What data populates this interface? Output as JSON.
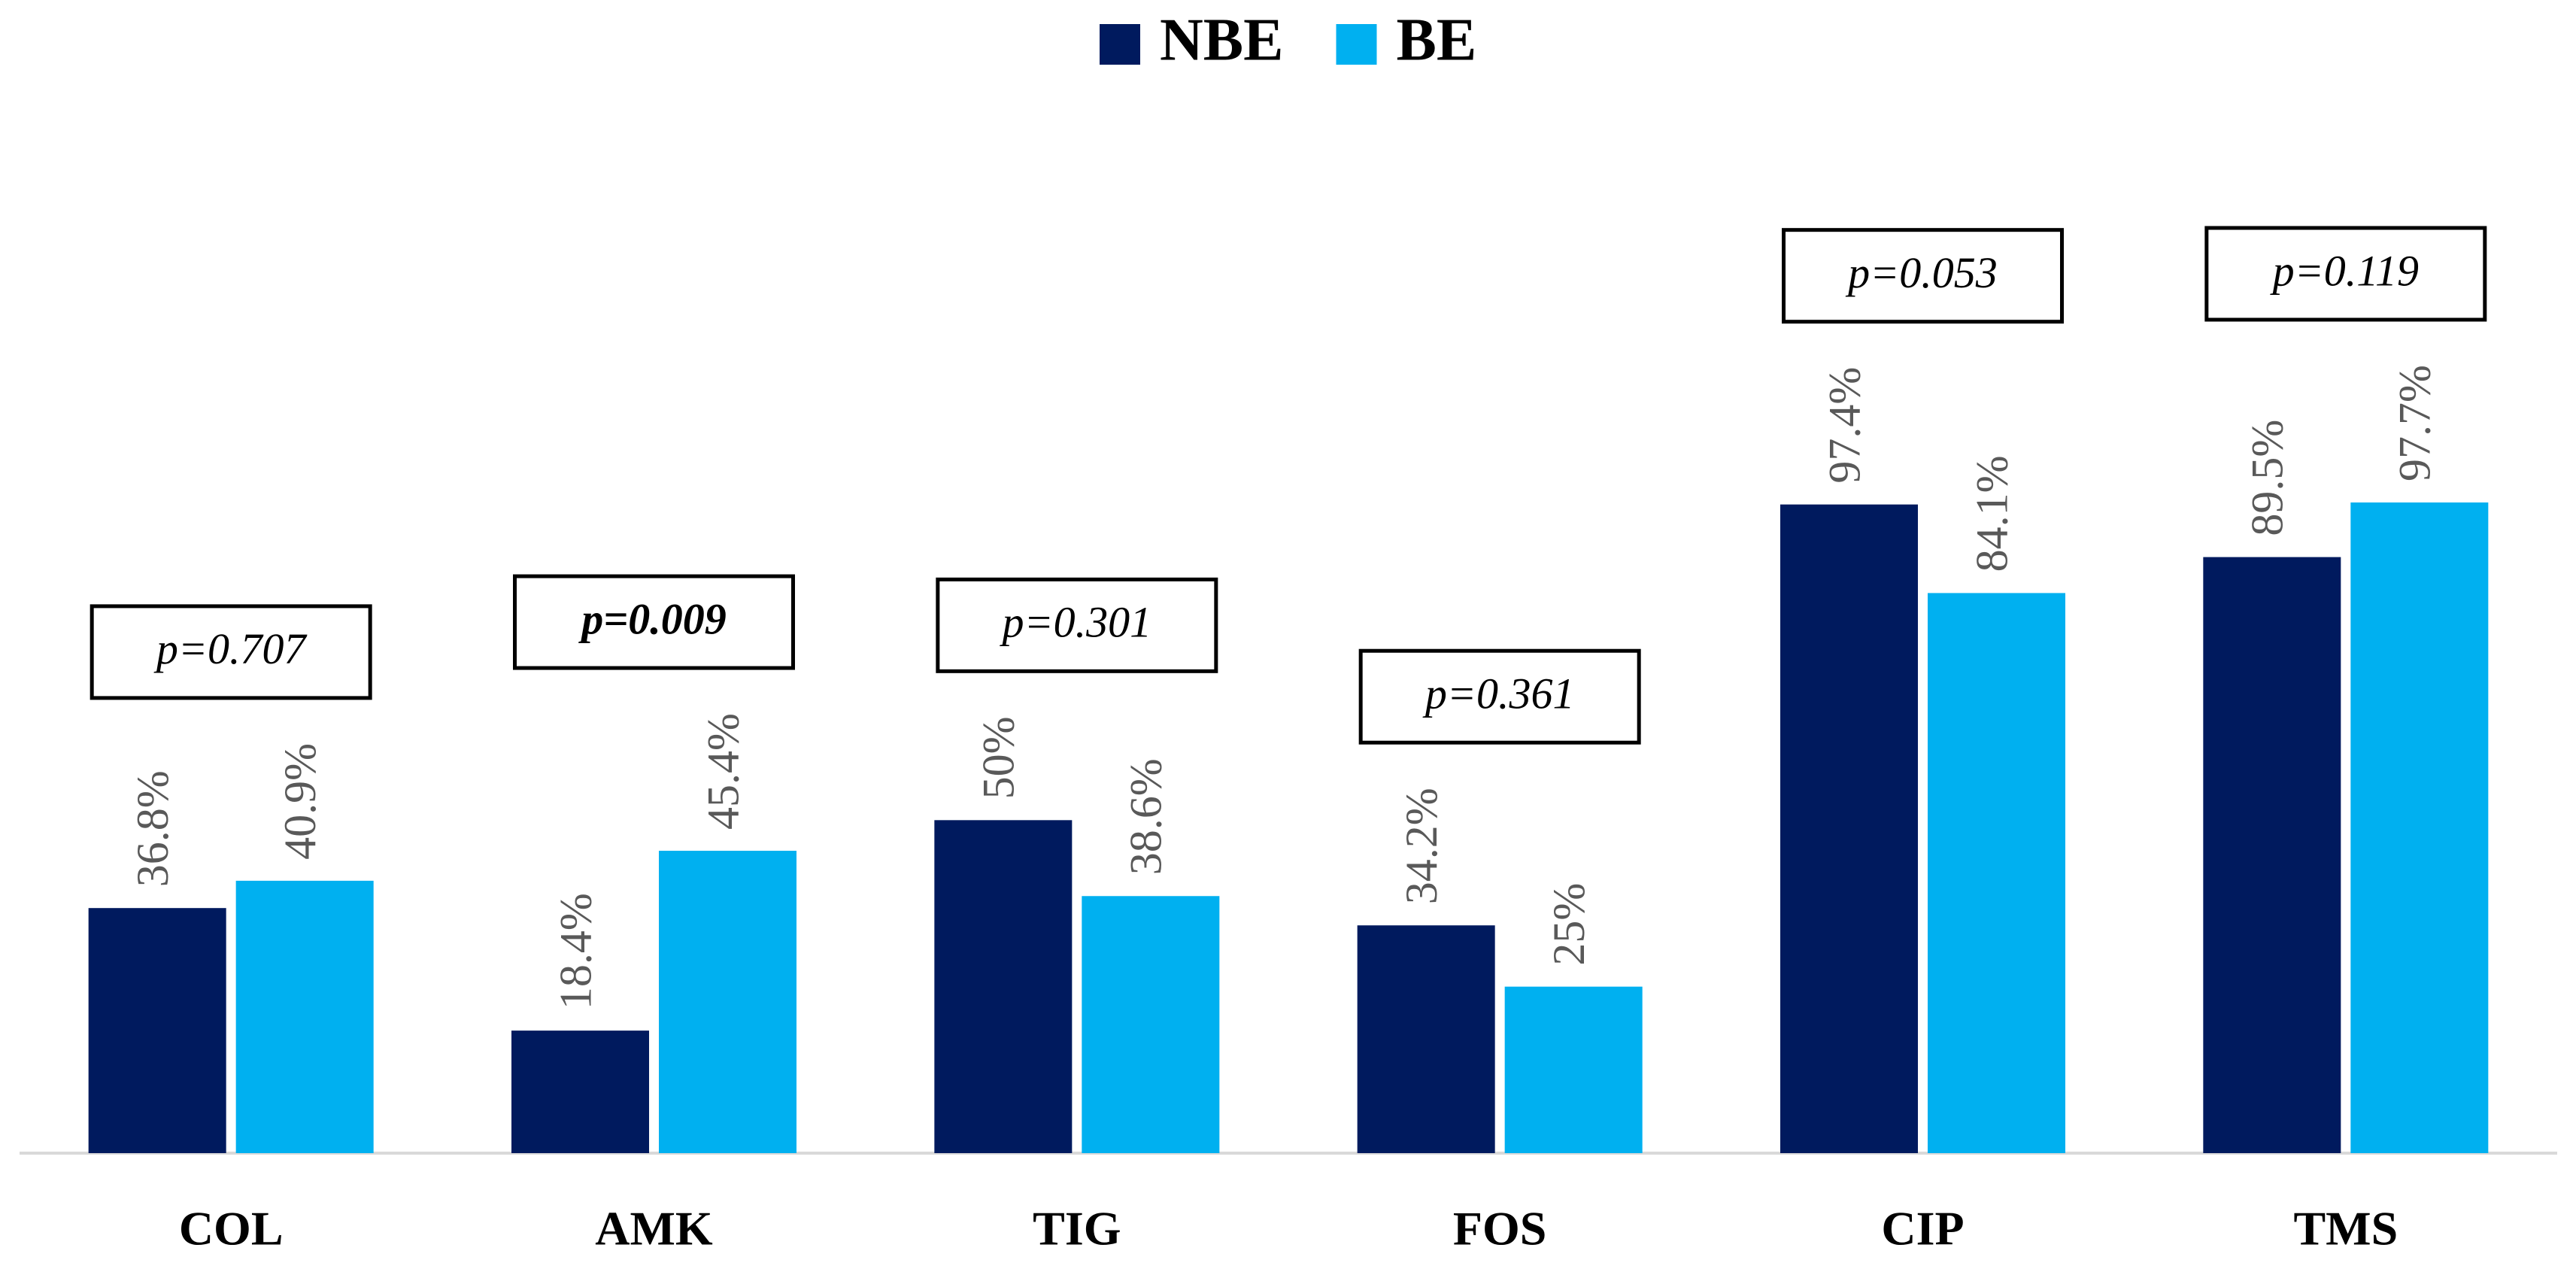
{
  "chart_data": {
    "type": "bar",
    "categories": [
      "COL",
      "AMK",
      "TIG",
      "FOS",
      "CIP",
      "TMS"
    ],
    "series": [
      {
        "name": "NBE",
        "color": "#001a5e",
        "values": [
          36.8,
          18.4,
          50,
          34.2,
          97.4,
          89.5
        ],
        "value_labels": [
          "36.8%",
          "18.4%",
          "50%",
          "34.2%",
          "97.4%",
          "89.5%"
        ]
      },
      {
        "name": "BE",
        "color": "#00b0f0",
        "values": [
          40.9,
          45.4,
          38.6,
          25,
          84.1,
          97.7
        ],
        "value_labels": [
          "40.9%",
          "45.4%",
          "38.6%",
          "25%",
          "84.1%",
          "97.7%"
        ]
      }
    ],
    "annotations": [
      "p=0.707",
      "p=0.009",
      "p=0.301",
      "p=0.361",
      "p=0.053",
      "p=0.119"
    ],
    "annotations_bold": [
      false,
      true,
      false,
      false,
      false,
      false
    ],
    "legend": "top"
  }
}
